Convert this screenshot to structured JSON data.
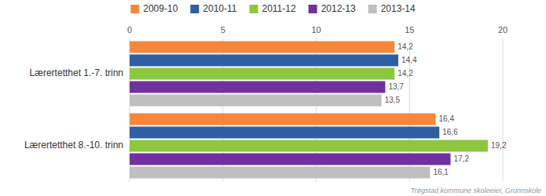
{
  "chart_data": {
    "type": "bar",
    "orientation": "horizontal",
    "categories": [
      "Lærertetthet 1.-7. trinn",
      "Lærertetthet 8.-10. trinn"
    ],
    "series": [
      {
        "name": "2009-10",
        "color": "#F4873B",
        "values": [
          14.2,
          16.4
        ],
        "value_labels": [
          "14,2",
          "16,4"
        ]
      },
      {
        "name": "2010-11",
        "color": "#2E5FA3",
        "values": [
          14.4,
          16.6
        ],
        "value_labels": [
          "14,4",
          "16,6"
        ]
      },
      {
        "name": "2011-12",
        "color": "#8DC63F",
        "values": [
          14.2,
          19.2
        ],
        "value_labels": [
          "14,2",
          "19,2"
        ]
      },
      {
        "name": "2012-13",
        "color": "#7030A0",
        "values": [
          13.7,
          17.2
        ],
        "value_labels": [
          "13,7",
          "17,2"
        ]
      },
      {
        "name": "2013-14",
        "color": "#BFBFBF",
        "values": [
          13.5,
          16.1
        ],
        "value_labels": [
          "13,5",
          "16,1"
        ]
      }
    ],
    "xlim": [
      0,
      20
    ],
    "xticks": [
      0,
      5,
      10,
      15,
      20
    ],
    "grid": true,
    "legend": "top",
    "data_labels": true,
    "annotations": [
      "Trøgstad kommune skoleeier, Grunnskole"
    ]
  }
}
